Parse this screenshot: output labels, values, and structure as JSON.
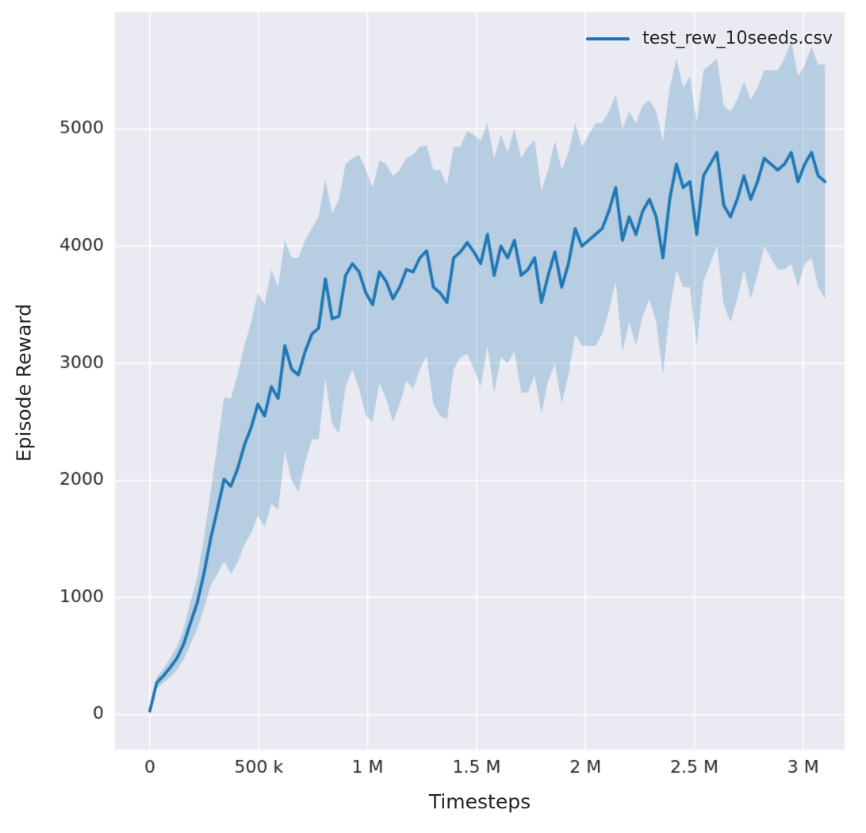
{
  "colors": {
    "line": "#1f77b4",
    "band": "rgba(31,119,180,0.25)",
    "axes_background": "#eaeaf2",
    "grid": "#ffffff",
    "tick_label": "#262626"
  },
  "chart_data": {
    "type": "line",
    "title": "",
    "xlabel": "Timesteps",
    "ylabel": "Episode Reward",
    "legend_position": "upper right",
    "grid": true,
    "xlim": [
      -160000,
      3190000
    ],
    "ylim": [
      -300,
      6000
    ],
    "x_ticks": {
      "values": [
        0,
        500000,
        1000000,
        1500000,
        2000000,
        2500000,
        3000000
      ],
      "labels": [
        "0",
        "500 k",
        "1 M",
        "1.5 M",
        "2 M",
        "2.5 M",
        "3 M"
      ]
    },
    "y_ticks": {
      "values": [
        0,
        1000,
        2000,
        3000,
        4000,
        5000
      ],
      "labels": [
        "0",
        "1000",
        "2000",
        "3000",
        "4000",
        "5000"
      ]
    },
    "series": [
      {
        "name": "test_rew_10seeds.csv",
        "x": [
          0,
          31000,
          62000,
          93000,
          124000,
          155000,
          186000,
          217000,
          248000,
          279000,
          310000,
          341000,
          372000,
          403000,
          434000,
          465000,
          496000,
          527000,
          558000,
          589000,
          620000,
          651000,
          682000,
          713000,
          744000,
          775000,
          806000,
          837000,
          868000,
          899000,
          930000,
          961000,
          992000,
          1023000,
          1054000,
          1085000,
          1116000,
          1147000,
          1178000,
          1209000,
          1240000,
          1271000,
          1302000,
          1333000,
          1364000,
          1395000,
          1426000,
          1457000,
          1488000,
          1519000,
          1550000,
          1581000,
          1612000,
          1643000,
          1674000,
          1705000,
          1736000,
          1767000,
          1798000,
          1829000,
          1860000,
          1891000,
          1922000,
          1953000,
          1984000,
          2015000,
          2046000,
          2077000,
          2108000,
          2139000,
          2170000,
          2201000,
          2232000,
          2263000,
          2294000,
          2325000,
          2356000,
          2387000,
          2418000,
          2449000,
          2480000,
          2511000,
          2542000,
          2573000,
          2604000,
          2635000,
          2666000,
          2697000,
          2728000,
          2759000,
          2790000,
          2821000,
          2852000,
          2883000,
          2914000,
          2945000,
          2976000,
          3007000,
          3038000,
          3069000,
          3100000
        ],
        "mean": [
          30,
          270,
          330,
          400,
          480,
          600,
          780,
          950,
          1200,
          1500,
          1750,
          2010,
          1950,
          2100,
          2300,
          2450,
          2650,
          2550,
          2800,
          2700,
          3150,
          2950,
          2900,
          3100,
          3250,
          3300,
          3720,
          3380,
          3400,
          3750,
          3850,
          3780,
          3600,
          3500,
          3780,
          3700,
          3550,
          3650,
          3800,
          3780,
          3900,
          3960,
          3650,
          3600,
          3520,
          3900,
          3950,
          4030,
          3950,
          3850,
          4100,
          3750,
          4000,
          3900,
          4050,
          3750,
          3800,
          3900,
          3520,
          3750,
          3950,
          3650,
          3850,
          4150,
          4000,
          4050,
          4100,
          4150,
          4300,
          4500,
          4050,
          4250,
          4100,
          4300,
          4400,
          4250,
          3900,
          4400,
          4700,
          4500,
          4550,
          4100,
          4600,
          4700,
          4800,
          4350,
          4250,
          4400,
          4600,
          4400,
          4550,
          4750,
          4700,
          4650,
          4700,
          4800,
          4550,
          4700,
          4800,
          4600,
          4550
        ],
        "std": [
          20,
          50,
          60,
          80,
          100,
          130,
          180,
          220,
          300,
          400,
          550,
          700,
          750,
          800,
          850,
          900,
          950,
          950,
          1000,
          950,
          900,
          950,
          1000,
          950,
          900,
          950,
          850,
          900,
          1000,
          950,
          900,
          1000,
          1050,
          1000,
          950,
          1000,
          1050,
          1000,
          950,
          1000,
          950,
          900,
          1000,
          1050,
          1000,
          950,
          900,
          950,
          1000,
          1050,
          950,
          1000,
          950,
          900,
          950,
          1000,
          1050,
          1000,
          950,
          900,
          950,
          1000,
          950,
          900,
          850,
          900,
          950,
          900,
          850,
          800,
          950,
          900,
          950,
          900,
          850,
          900,
          1000,
          950,
          900,
          850,
          900,
          950,
          900,
          850,
          800,
          850,
          900,
          850,
          800,
          850,
          800,
          750,
          800,
          850,
          900,
          950,
          900,
          850,
          900,
          950,
          1000
        ]
      }
    ]
  }
}
